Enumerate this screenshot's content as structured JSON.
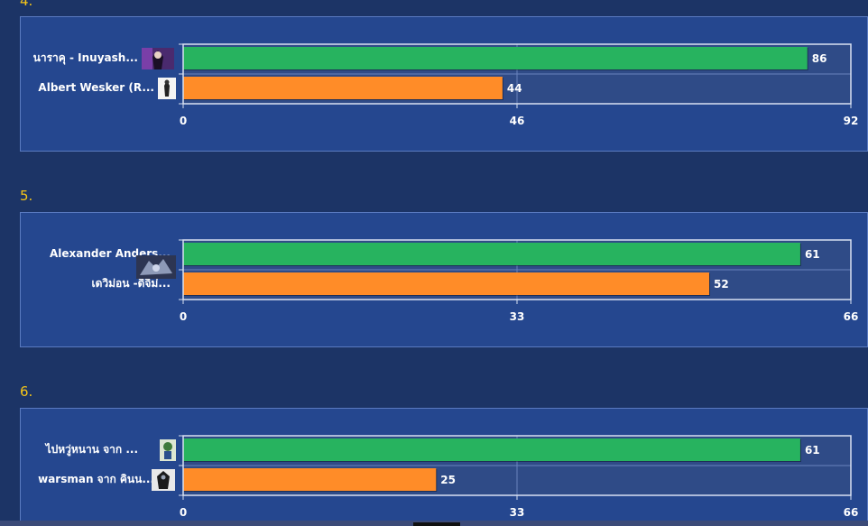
{
  "chart_data": [
    {
      "type": "bar",
      "orientation": "horizontal",
      "section_number": "4.",
      "categories": [
        "นาราคุ - Inuyash...",
        "Albert Wesker (R..."
      ],
      "values": [
        86,
        44
      ],
      "bar_colors": [
        "#27b35f",
        "#ff8c28"
      ],
      "xlim": [
        0,
        92
      ],
      "ticks": [
        "0",
        "46",
        "92"
      ],
      "avatars": [
        "purple-dark-character-avatar-icon",
        "white-dark-figure-avatar-icon"
      ]
    },
    {
      "type": "bar",
      "orientation": "horizontal",
      "section_number": "5.",
      "categories": [
        "Alexander Anders...",
        "เดวิม่อน -ดิจิม่..."
      ],
      "values": [
        61,
        52
      ],
      "bar_colors": [
        "#27b35f",
        "#ff8c28"
      ],
      "xlim": [
        0,
        66
      ],
      "ticks": [
        "0",
        "33",
        "66"
      ],
      "avatars": [
        "dark-blue-monster-avatar-icon"
      ]
    },
    {
      "type": "bar",
      "orientation": "horizontal",
      "section_number": "6.",
      "categories": [
        "ไปหวู่หนาน จาก ...",
        "warsman จาก คินน..."
      ],
      "values": [
        61,
        25
      ],
      "bar_colors": [
        "#27b35f",
        "#ff8c28"
      ],
      "xlim": [
        0,
        66
      ],
      "ticks": [
        "0",
        "33",
        "66"
      ],
      "avatars": [
        "cartoon-warrior-avatar-icon",
        "black-robot-avatar-icon"
      ]
    }
  ]
}
